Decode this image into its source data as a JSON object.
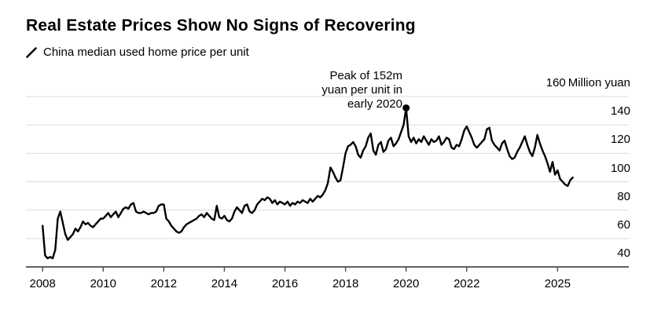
{
  "title": "Real Estate Prices Show No Signs of Recovering",
  "legend": {
    "label": "China median used home price per unit"
  },
  "annotation_text": "Peak of 152m\nyuan per unit in\nearly 2020",
  "chart_data": {
    "type": "line",
    "title": "Real Estate Prices Show No Signs of Recovering",
    "xlabel": "",
    "ylabel": "Million yuan",
    "legend_position": "top-left",
    "grid": true,
    "x_ticks": [
      2008,
      2010,
      2012,
      2014,
      2016,
      2018,
      2020,
      2022,
      2025
    ],
    "y_ticks": [
      40,
      60,
      80,
      100,
      120,
      140,
      160
    ],
    "ylim": [
      40,
      160
    ],
    "xlim": [
      2007.45,
      2027.35
    ],
    "annotation": {
      "text": "Peak of 152m yuan per unit in early 2020",
      "x": 2020.0,
      "y": 152
    },
    "colors": {
      "line": "#000000",
      "grid": "#dcdcdc",
      "axis": "#4a4a4a",
      "text": "#000000"
    },
    "series": [
      {
        "name": "China median used home price per unit",
        "start_year": 2008,
        "interval_months": 1,
        "values": [
          69,
          48,
          46,
          47,
          46,
          52,
          74,
          79,
          71,
          63,
          59,
          61,
          63,
          67,
          65,
          68,
          72,
          70,
          71,
          69,
          68,
          70,
          72,
          74,
          74,
          76,
          78,
          75,
          77,
          79,
          75,
          78,
          81,
          82,
          81,
          84,
          85,
          79,
          78,
          78,
          79,
          78,
          77,
          78,
          78,
          79,
          83,
          84,
          84,
          74,
          72,
          69,
          67,
          65,
          64,
          65,
          68,
          70,
          71,
          72,
          73,
          74,
          76,
          77,
          75,
          78,
          76,
          74,
          73,
          83,
          75,
          74,
          76,
          73,
          72,
          74,
          79,
          82,
          80,
          78,
          83,
          84,
          79,
          78,
          80,
          84,
          86,
          88,
          87,
          89,
          88,
          85,
          87,
          84,
          86,
          85,
          84,
          86,
          83,
          85,
          84,
          86,
          85,
          87,
          86,
          85,
          88,
          86,
          88,
          90,
          89,
          91,
          94,
          99,
          110,
          107,
          103,
          100,
          101,
          110,
          120,
          125,
          126,
          128,
          125,
          119,
          117,
          122,
          125,
          131,
          134,
          122,
          119,
          126,
          128,
          121,
          123,
          129,
          131,
          125,
          127,
          130,
          135,
          140,
          152,
          132,
          128,
          131,
          127,
          130,
          128,
          132,
          129,
          126,
          130,
          128,
          129,
          132,
          126,
          128,
          131,
          130,
          124,
          123,
          126,
          125,
          130,
          136,
          139,
          135,
          131,
          126,
          124,
          126,
          128,
          130,
          137,
          138,
          129,
          126,
          124,
          122,
          127,
          129,
          123,
          118,
          116,
          117,
          121,
          124,
          128,
          132,
          126,
          121,
          118,
          124,
          133,
          127,
          122,
          118,
          113,
          107,
          114,
          105,
          108,
          102,
          100,
          98,
          97,
          101,
          103
        ]
      }
    ]
  }
}
